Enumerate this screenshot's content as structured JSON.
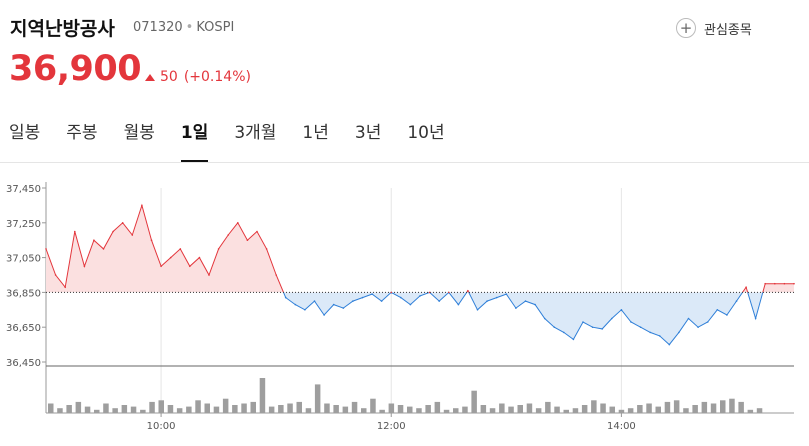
{
  "stock": {
    "name": "지역난방공사",
    "code": "071320",
    "market": "KOSPI",
    "price": "36,900",
    "change": "50",
    "change_pct": "(+0.14%)"
  },
  "actions": {
    "favorite_label": "관심종목",
    "favorite_icon": "plus-circle-icon"
  },
  "tabs": [
    {
      "label": "일봉",
      "active": false
    },
    {
      "label": "주봉",
      "active": false
    },
    {
      "label": "월봉",
      "active": false
    },
    {
      "label": "1일",
      "active": true
    },
    {
      "label": "3개월",
      "active": false
    },
    {
      "label": "1년",
      "active": false
    },
    {
      "label": "3년",
      "active": false
    },
    {
      "label": "10년",
      "active": false
    }
  ],
  "colors": {
    "up": "#e3363c",
    "down": "#2f7fd8",
    "up_fill": "#fbe0e0",
    "down_fill": "#dbe9f8",
    "volume": "#9e9e9e"
  },
  "chart_data": {
    "type": "line",
    "baseline": 36850,
    "ylim": [
      36450,
      37450
    ],
    "yticks": [
      37450,
      37250,
      37050,
      36850,
      36650,
      36450
    ],
    "ytick_labels": [
      "37,450",
      "37,250",
      "37,050",
      "36,850",
      "36,650",
      "36,450"
    ],
    "xlim": [
      "09:00",
      "15:30"
    ],
    "xticks": [
      "10:00",
      "12:00",
      "14:00"
    ],
    "grid": "vertical at x ticks",
    "series": [
      {
        "x": [
          "09:00",
          "09:05",
          "09:10",
          "09:15",
          "09:20",
          "09:25",
          "09:30",
          "09:35",
          "09:40",
          "09:45",
          "09:50",
          "09:55",
          "10:00",
          "10:05",
          "10:10",
          "10:15",
          "10:20",
          "10:25",
          "10:30",
          "10:35",
          "10:40",
          "10:45",
          "10:50",
          "10:55",
          "11:00",
          "11:05",
          "11:10",
          "11:15",
          "11:20",
          "11:25",
          "11:30",
          "11:35",
          "11:40",
          "11:45",
          "11:50",
          "11:55",
          "12:00",
          "12:05",
          "12:10",
          "12:15",
          "12:20",
          "12:25",
          "12:30",
          "12:35",
          "12:40",
          "12:45",
          "12:50",
          "12:55",
          "13:00",
          "13:05",
          "13:10",
          "13:15",
          "13:20",
          "13:25",
          "13:30",
          "13:35",
          "13:40",
          "13:45",
          "13:50",
          "13:55",
          "14:00",
          "14:05",
          "14:10",
          "14:15",
          "14:20",
          "14:25",
          "14:30",
          "14:35",
          "14:40",
          "14:45",
          "14:50",
          "14:55",
          "15:00",
          "15:05",
          "15:10",
          "15:15",
          "15:20",
          "15:25",
          "15:30"
        ],
        "values": [
          37100,
          36950,
          36880,
          37200,
          37000,
          37150,
          37100,
          37200,
          37250,
          37180,
          37350,
          37150,
          37000,
          37050,
          37100,
          37000,
          37050,
          36950,
          37100,
          37180,
          37250,
          37150,
          37200,
          37100,
          36950,
          36820,
          36780,
          36750,
          36800,
          36720,
          36780,
          36760,
          36800,
          36820,
          36840,
          36800,
          36850,
          36820,
          36780,
          36830,
          36850,
          36800,
          36850,
          36780,
          36860,
          36750,
          36800,
          36820,
          36840,
          36760,
          36800,
          36780,
          36700,
          36650,
          36620,
          36580,
          36680,
          36650,
          36640,
          36700,
          36750,
          36680,
          36650,
          36620,
          36600,
          36550,
          36620,
          36700,
          36650,
          36680,
          36750,
          36720,
          36800,
          36880,
          36700,
          36900,
          36900,
          36900,
          36900
        ]
      }
    ],
    "volume": [
      6,
      3,
      5,
      7,
      4,
      2,
      6,
      3,
      5,
      4,
      2,
      7,
      8,
      5,
      3,
      4,
      8,
      6,
      4,
      9,
      5,
      6,
      7,
      22,
      4,
      5,
      6,
      7,
      3,
      18,
      6,
      5,
      4,
      7,
      3,
      9,
      2,
      6,
      5,
      4,
      3,
      5,
      7,
      2,
      3,
      4,
      14,
      5,
      3,
      6,
      4,
      5,
      6,
      3,
      7,
      4,
      2,
      3,
      5,
      8,
      6,
      4,
      2,
      3,
      5,
      6,
      4,
      7,
      8,
      3,
      5,
      7,
      6,
      8,
      9,
      7,
      2,
      3
    ]
  }
}
